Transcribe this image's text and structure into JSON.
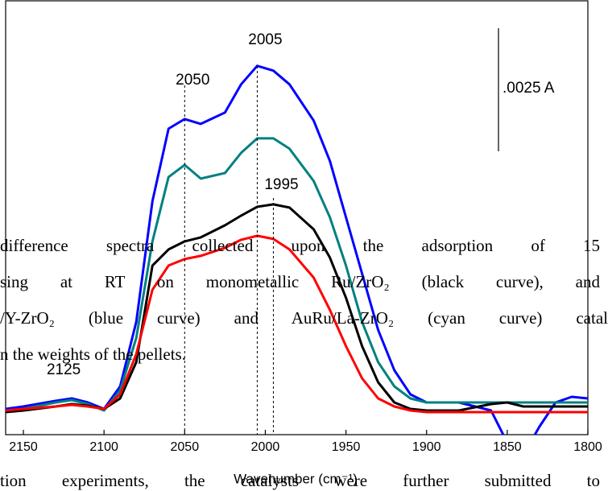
{
  "chart_data": {
    "type": "line",
    "x_label": "Wavenumber (cm⁻¹)",
    "x": [
      2161,
      2150,
      2130,
      2120,
      2110,
      2100,
      2090,
      2080,
      2070,
      2060,
      2050,
      2040,
      2025,
      2015,
      2005,
      1995,
      1985,
      1970,
      1960,
      1950,
      1940,
      1930,
      1920,
      1910,
      1900,
      1880,
      1860,
      1850,
      1840,
      1830,
      1820,
      1810,
      1800
    ],
    "xlim": [
      2161,
      1800
    ],
    "xticks": [
      2150,
      2100,
      2050,
      2000,
      1950,
      1900,
      1850,
      1800
    ],
    "ylim": [
      0,
      0.00882
    ],
    "series": [
      {
        "color": "#0000ff",
        "values": [
          0.000523,
          0.000572,
          0.000686,
          0.000735,
          0.000654,
          0.000523,
          0.00098,
          0.002288,
          0.004739,
          0.006209,
          0.006405,
          0.006307,
          0.006536,
          0.007108,
          0.007484,
          0.007386,
          0.007108,
          0.006373,
          0.005556,
          0.004412,
          0.003268,
          0.002124,
          0.001307,
          0.000817,
          0.000654,
          0.000654,
          0.00049,
          -0.000163,
          -0.000409,
          0.000163,
          0.000654,
          0.000768,
          0.000735
        ]
      },
      {
        "color": "#008080",
        "values": [
          0.00049,
          0.000523,
          0.000654,
          0.000703,
          0.000621,
          0.00049,
          0.000899,
          0.001961,
          0.003922,
          0.005229,
          0.005474,
          0.005196,
          0.00531,
          0.005719,
          0.006013,
          0.006013,
          0.005801,
          0.005147,
          0.004412,
          0.003431,
          0.002288,
          0.001471,
          0.00098,
          0.000735,
          0.000654,
          0.000654,
          0.000654,
          0.000654,
          0.000654,
          0.000654,
          0.000654,
          0.000654,
          0.000654
        ]
      },
      {
        "color": "#000000",
        "values": [
          0.000458,
          0.00049,
          0.000572,
          0.000621,
          0.000588,
          0.000523,
          0.000735,
          0.001471,
          0.003431,
          0.003758,
          0.003922,
          0.004003,
          0.004248,
          0.004444,
          0.004624,
          0.004673,
          0.004608,
          0.004167,
          0.003595,
          0.002778,
          0.001797,
          0.001062,
          0.000654,
          0.000523,
          0.00049,
          0.00049,
          0.000621,
          0.000654,
          0.000572,
          0.000572,
          0.000572,
          0.000572,
          0.000572
        ]
      },
      {
        "color": "#ff0000",
        "values": [
          0.00049,
          0.000523,
          0.000572,
          0.000605,
          0.000572,
          0.000523,
          0.000817,
          0.001634,
          0.002941,
          0.003431,
          0.003562,
          0.003627,
          0.003791,
          0.003954,
          0.004036,
          0.003971,
          0.003758,
          0.003186,
          0.002533,
          0.001797,
          0.001144,
          0.000735,
          0.000572,
          0.00049,
          0.000458,
          0.000458,
          0.000458,
          0.000458,
          0.000458,
          0.000458,
          0.000458,
          0.000458,
          0.000458
        ]
      }
    ],
    "annotations": [
      {
        "text": "2050",
        "x": 2050
      },
      {
        "text": "2005",
        "x": 2005
      },
      {
        "text": "1995",
        "x": 1995
      },
      {
        "text": "2125",
        "x": 2125
      }
    ],
    "scale_bar": {
      "label": ".0025 A",
      "value": 0.0025
    }
  },
  "document_text": [
    "difference spectra collected upon the adsorption of 15",
    "sing at RT on monometallic Ru/ZrO₂ (black curve), and",
    "/Y-ZrO₂ (blue curve) and AuRu/La-ZrO₂ (cyan curve) catal",
    "n the weights of the pellets.",
    "tion experiments, the catalysts were further submitted to"
  ]
}
